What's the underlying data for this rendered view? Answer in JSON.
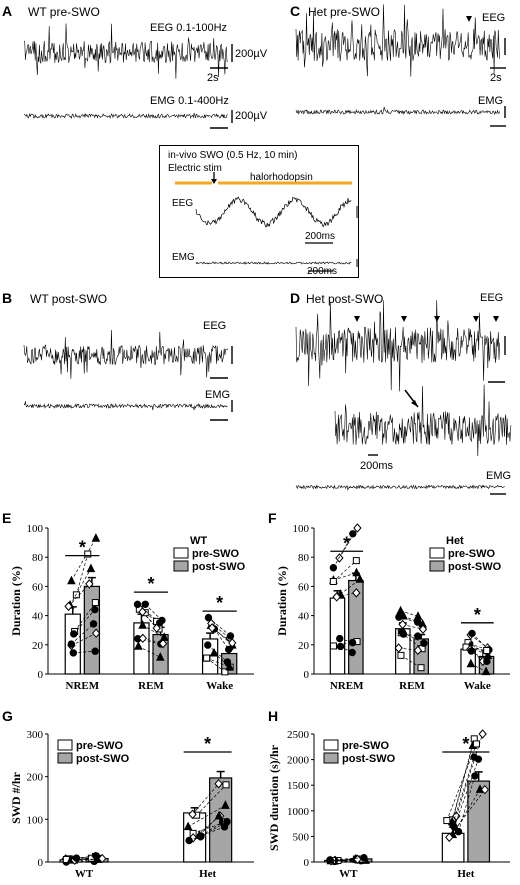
{
  "colors": {
    "trace": "#000000",
    "light_stim": "#f5a623",
    "pre_bar": "#ffffff",
    "post_bar": "#a6a6a6"
  },
  "panels": {
    "A": {
      "letter": "A",
      "title": "WT  pre-SWO",
      "eeg_label": "EEG 0.1-100Hz",
      "emg_label": "EMG 0.1-400Hz",
      "scale_v": "200µV",
      "scale_t": "2s",
      "scale_v2": "200µV"
    },
    "B": {
      "letter": "B",
      "title": "WT post-SWO",
      "eeg_label": "EEG",
      "emg_label": "EMG"
    },
    "C": {
      "letter": "C",
      "title": "Het pre-SWO",
      "eeg_label": "EEG",
      "emg_label": "EMG",
      "scale_t": "2s"
    },
    "D": {
      "letter": "D",
      "title": "Het post-SWO",
      "eeg_label": "EEG",
      "emg_label": "EMG",
      "scale_t": "200ms"
    },
    "inset": {
      "title": "in-vivo SWO (0.5 Hz, 10 min)",
      "stim_label": "Electric stim",
      "light_label": "halorhodopsin",
      "eeg_label": "EEG",
      "emg_label": "EMG",
      "scale_t1": "200ms",
      "scale_t2": "200ms"
    }
  },
  "chart_data": [
    {
      "id": "E",
      "type": "bar",
      "title": "",
      "legend_title": "WT",
      "categories": [
        "NREM",
        "REM",
        "Wake"
      ],
      "ylabel": "Duration (%)",
      "ylim": [
        0,
        100
      ],
      "yticks": [
        0,
        20,
        40,
        60,
        80,
        100
      ],
      "legend_placement": "top-right",
      "series": [
        {
          "name": "pre-SWO",
          "values": [
            41,
            35,
            24
          ]
        },
        {
          "name": "post-SWO",
          "values": [
            60,
            27,
            14
          ]
        }
      ],
      "errors": [
        [
          5,
          6,
          4
        ],
        [
          6,
          5,
          3
        ]
      ],
      "significance": [
        "*",
        "*",
        "*"
      ]
    },
    {
      "id": "F",
      "type": "bar",
      "title": "",
      "legend_title": "Het",
      "categories": [
        "NREM",
        "REM",
        "Wake"
      ],
      "ylabel": "Duration (%)",
      "ylim": [
        0,
        100
      ],
      "yticks": [
        0,
        20,
        40,
        60,
        80,
        100
      ],
      "legend_placement": "top-right",
      "series": [
        {
          "name": "pre-SWO",
          "values": [
            52,
            31,
            17
          ]
        },
        {
          "name": "post-SWO",
          "values": [
            64,
            24,
            12
          ]
        }
      ],
      "errors": [
        [
          5,
          4,
          3
        ],
        [
          5,
          3,
          2
        ]
      ],
      "significance": [
        "*",
        "",
        "*"
      ]
    },
    {
      "id": "G",
      "type": "bar",
      "title": "",
      "legend_title": "",
      "categories": [
        "WT",
        "Het"
      ],
      "ylabel": "SWD #/hr",
      "ylim": [
        0,
        300
      ],
      "yticks": [
        0,
        100,
        200,
        300
      ],
      "legend_placement": "top-left",
      "series": [
        {
          "name": "pre-SWO",
          "values": [
            5,
            115
          ]
        },
        {
          "name": "post-SWO",
          "values": [
            8,
            197
          ]
        }
      ],
      "errors": [
        [
          3,
          12
        ],
        [
          3,
          15
        ]
      ],
      "significance": [
        "",
        "*"
      ]
    },
    {
      "id": "H",
      "type": "bar",
      "title": "",
      "legend_title": "",
      "categories": [
        "WT",
        "Het"
      ],
      "ylabel": "SWD duration (s)/hr",
      "ylim": [
        0,
        2500
      ],
      "yticks": [
        0,
        500,
        1000,
        1500,
        2000,
        2500
      ],
      "legend_placement": "top-left",
      "series": [
        {
          "name": "pre-SWO",
          "values": [
            30,
            560
          ]
        },
        {
          "name": "post-SWO",
          "values": [
            60,
            1580
          ]
        }
      ],
      "errors": [
        [
          15,
          120
        ],
        [
          25,
          180
        ]
      ],
      "significance": [
        "",
        "*"
      ]
    }
  ]
}
